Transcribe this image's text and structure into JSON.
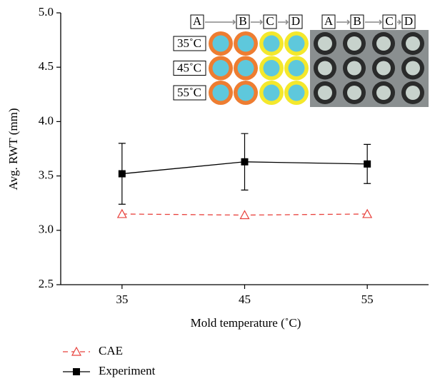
{
  "chart_data": {
    "type": "line",
    "xlabel": "Mold temperature (˚C)",
    "ylabel": "Avg. RWT (mm)",
    "x": [
      35,
      45,
      55
    ],
    "xlim": [
      30,
      60
    ],
    "xticks": [
      35,
      45,
      55
    ],
    "ylim": [
      2.5,
      5.0
    ],
    "yticks": [
      2.5,
      {
        "value": 3.0,
        "label": "3.0"
      },
      3.5,
      {
        "value": 4.0,
        "label": "4.0"
      },
      4.5,
      {
        "value": 5.0,
        "label": "5.0"
      }
    ],
    "series": [
      {
        "name": "CAE",
        "color": "#e8413c",
        "dashed": true,
        "marker": "triangle-open",
        "values": [
          3.15,
          3.14,
          3.15
        ]
      },
      {
        "name": "Experiment",
        "color": "#000000",
        "marker": "square",
        "values": [
          3.52,
          3.63,
          3.61
        ],
        "errors": [
          0.28,
          0.26,
          0.18
        ]
      }
    ],
    "inset": {
      "columns": [
        "A",
        "B",
        "C",
        "D"
      ],
      "rows": [
        "35˚C",
        "45˚C",
        "55˚C"
      ]
    }
  }
}
